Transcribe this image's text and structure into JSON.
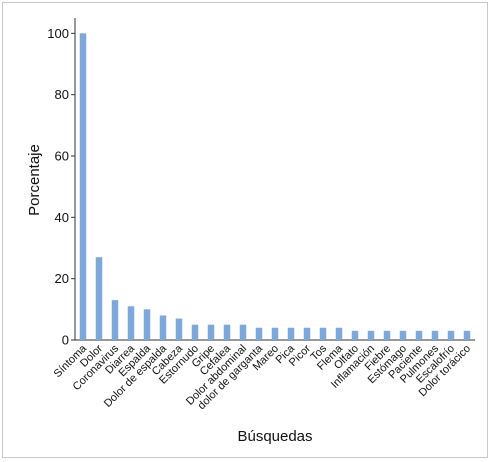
{
  "chart_data": {
    "type": "bar",
    "xlabel": "Búsquedas",
    "ylabel": "Porcentaje",
    "ylim": [
      0,
      105
    ],
    "yticks": [
      0,
      20,
      40,
      60,
      80,
      100
    ],
    "grid": false,
    "bar_color": "#7fa7da",
    "categories": [
      "Síntoma",
      "Dolor",
      "Coronavirus",
      "Diarrea",
      "Espalda",
      "Dolor de espalda",
      "Cabeza",
      "Estornudo",
      "Gripe",
      "Cefalea",
      "Dolor abdominal",
      "dolor de garganta",
      "Mareo",
      "Pica",
      "Picor",
      "Tos",
      "Flema",
      "Olfato",
      "Inflamación",
      "Fiebre",
      "Estómago",
      "Paciente",
      "Pulmones",
      "Escalofrío",
      "Dolor torácico"
    ],
    "values": [
      100,
      27,
      13,
      11,
      10,
      8,
      7,
      5,
      5,
      5,
      5,
      4,
      4,
      4,
      4,
      4,
      4,
      3,
      3,
      3,
      3,
      3,
      3,
      3,
      3
    ]
  }
}
